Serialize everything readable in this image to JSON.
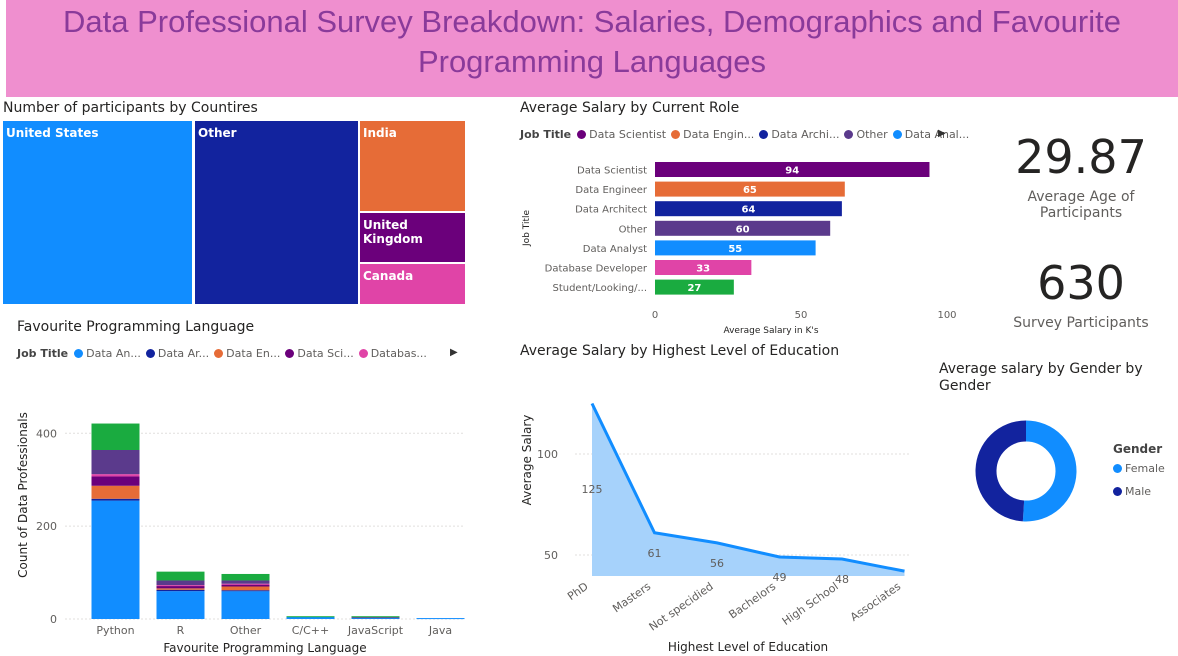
{
  "banner": {
    "title": "Data Professional Survey Breakdown: Salaries, Demographics and Favourite Programming Languages"
  },
  "colors": {
    "banner_bg": "#ef8fcf",
    "banner_text": "#8a3a9a",
    "data_analyst": "#118dff",
    "data_architect": "#12239e",
    "data_engineer": "#e66c37",
    "data_scientist": "#6b007b",
    "database_developer": "#e044a7",
    "other": "#5b3a8c",
    "student": "#1aab40"
  },
  "treemap": {
    "title": "Number of participants by Countires",
    "tiles": [
      {
        "label": "United States",
        "color": "#118dff"
      },
      {
        "label": "Other",
        "color": "#12239e"
      },
      {
        "label": "India",
        "color": "#e66c37"
      },
      {
        "label": "United Kingdom",
        "color": "#6b007b"
      },
      {
        "label": "Canada",
        "color": "#e044a7"
      }
    ]
  },
  "cards": {
    "avg_age": {
      "value": "29.87",
      "label": "Average Age of Participants"
    },
    "participants": {
      "value": "630",
      "label": "Survey Participants"
    }
  },
  "salary_by_role": {
    "title": "Average Salary by Current Role",
    "legend_title": "Job Title",
    "legend": [
      {
        "label": "Data Scientist",
        "color": "#6b007b"
      },
      {
        "label": "Data Engin...",
        "color": "#e66c37"
      },
      {
        "label": "Data Archi...",
        "color": "#12239e"
      },
      {
        "label": "Other",
        "color": "#5b3a8c"
      },
      {
        "label": "Data Anal...",
        "color": "#118dff"
      }
    ]
  },
  "fav_lang": {
    "title": "Favourite Programming Language",
    "legend_title": "Job Title",
    "legend": [
      {
        "label": "Data An...",
        "color": "#118dff"
      },
      {
        "label": "Data Ar...",
        "color": "#12239e"
      },
      {
        "label": "Data En...",
        "color": "#e66c37"
      },
      {
        "label": "Data Sci...",
        "color": "#6b007b"
      },
      {
        "label": "Databas...",
        "color": "#e044a7"
      }
    ]
  },
  "education": {
    "title": "Average Salary by Highest Level of Education"
  },
  "gender": {
    "title_line1": "Average salary by Gender by",
    "title_line2": "Gender",
    "legend_title": "Gender",
    "items": [
      {
        "label": "Female",
        "color": "#118dff"
      },
      {
        "label": "Male",
        "color": "#12239e"
      }
    ]
  },
  "chart_data": [
    {
      "id": "role",
      "type": "bar",
      "orientation": "horizontal",
      "title": "Average Salary by Current Role",
      "xlabel": "Average Salary in K's",
      "ylabel": "Job Title",
      "xlim": [
        0,
        100
      ],
      "xticks": [
        0,
        50,
        100
      ],
      "categories": [
        "Data Scientist",
        "Data Engineer",
        "Data Architect",
        "Other",
        "Data Analyst",
        "Database Developer",
        "Student/Looking/..."
      ],
      "values": [
        94,
        65,
        64,
        60,
        55,
        33,
        27
      ],
      "colors": [
        "#6b007b",
        "#e66c37",
        "#12239e",
        "#5b3a8c",
        "#118dff",
        "#e044a7",
        "#1aab40"
      ]
    },
    {
      "id": "lang",
      "type": "bar",
      "stacked": true,
      "title": "Favourite Programming Language",
      "xlabel": "Favourite Programming Language",
      "ylabel": "Count of Data Professionals",
      "ylim": [
        0,
        420
      ],
      "yticks": [
        0,
        200,
        400
      ],
      "categories": [
        "Python",
        "R",
        "Other",
        "C/C++",
        "JavaScript",
        "Java"
      ],
      "series": [
        {
          "name": "Data Analyst",
          "color": "#118dff",
          "values": [
            255,
            60,
            60,
            5,
            3,
            2
          ]
        },
        {
          "name": "Data Architect",
          "color": "#12239e",
          "values": [
            4,
            3,
            2,
            0,
            0,
            0
          ]
        },
        {
          "name": "Data Engineer",
          "color": "#e66c37",
          "values": [
            28,
            3,
            8,
            0,
            0,
            0
          ]
        },
        {
          "name": "Data Scientist",
          "color": "#6b007b",
          "values": [
            20,
            5,
            4,
            0,
            0,
            0
          ]
        },
        {
          "name": "Database Developer",
          "color": "#e044a7",
          "values": [
            5,
            2,
            2,
            0,
            0,
            0
          ]
        },
        {
          "name": "Other",
          "color": "#5b3a8c",
          "values": [
            52,
            10,
            7,
            0,
            1,
            0
          ]
        },
        {
          "name": "Student/Looking/...",
          "color": "#1aab40",
          "values": [
            57,
            19,
            14,
            1,
            2,
            0
          ]
        }
      ]
    },
    {
      "id": "edu",
      "type": "area",
      "title": "Average Salary by Highest Level of Education",
      "xlabel": "Highest Level of Education",
      "ylabel": "Average Salary",
      "yticks": [
        50,
        100
      ],
      "categories": [
        "PhD",
        "Masters",
        "Not specidied",
        "Bachelors",
        "High School",
        "Associates"
      ],
      "values": [
        125,
        61,
        56,
        49,
        48,
        42
      ],
      "data_labels": [
        "125",
        "61",
        "56",
        "49",
        "48",
        null
      ]
    },
    {
      "id": "gender",
      "type": "pie",
      "donut": true,
      "title": "Average salary by Gender by Gender",
      "labels": [
        "Female",
        "Male"
      ],
      "values": [
        51,
        49
      ],
      "colors": [
        "#118dff",
        "#12239e"
      ]
    }
  ]
}
